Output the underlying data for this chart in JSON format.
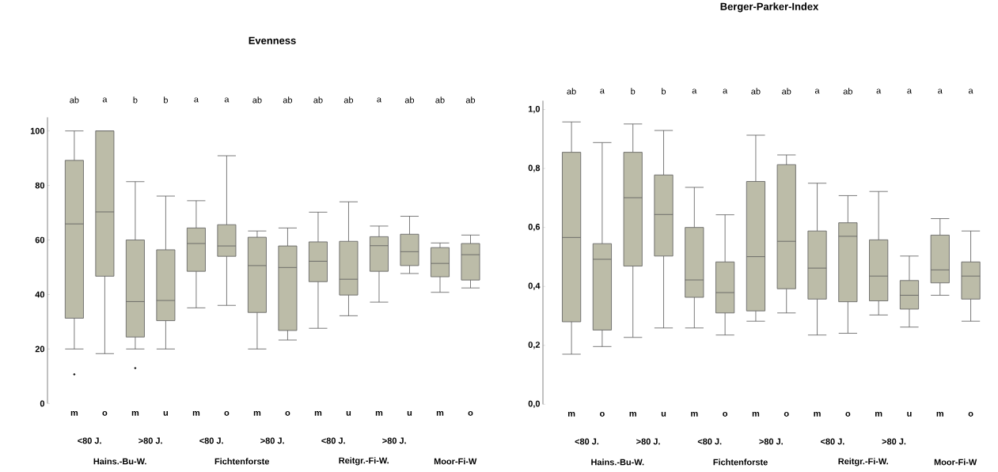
{
  "chart_data": [
    {
      "type": "box",
      "title": "Evenness",
      "color": "#bcbca8",
      "categories": [
        "m",
        "o",
        "m",
        "u",
        "m",
        "o",
        "m",
        "o",
        "m",
        "u",
        "m",
        "u",
        "m",
        "o"
      ],
      "ylim": [
        0,
        105
      ],
      "yticks": [
        0,
        20,
        40,
        60,
        80,
        100
      ],
      "boxes": [
        {
          "low": 20,
          "q1": 31.3,
          "median": 65.9,
          "q3": 89.2,
          "high": 100,
          "outliers": [
            10.7
          ]
        },
        {
          "low": 18.3,
          "q1": 46.7,
          "median": 70.3,
          "q3": 100,
          "high": 100
        },
        {
          "low": 20,
          "q1": 24.4,
          "median": 37.4,
          "q3": 60,
          "high": 81.4,
          "outliers": [
            13
          ]
        },
        {
          "low": 20,
          "q1": 30.4,
          "median": 37.8,
          "q3": 56.4,
          "high": 76.1
        },
        {
          "low": 35.1,
          "q1": 48.5,
          "median": 58.7,
          "q3": 64.4,
          "high": 74.4
        },
        {
          "low": 36,
          "q1": 54,
          "median": 57.8,
          "q3": 65.6,
          "high": 90.9
        },
        {
          "low": 20,
          "q1": 33.4,
          "median": 50.6,
          "q3": 61,
          "high": 63.3
        },
        {
          "low": 23.3,
          "q1": 26.8,
          "median": 49.9,
          "q3": 57.8,
          "high": 64.4
        },
        {
          "low": 27.6,
          "q1": 44.7,
          "median": 52.2,
          "q3": 59.3,
          "high": 70.2
        },
        {
          "low": 32.2,
          "q1": 39.8,
          "median": 45.6,
          "q3": 59.5,
          "high": 74
        },
        {
          "low": 37.2,
          "q1": 48.5,
          "median": 57.9,
          "q3": 61.2,
          "high": 65.1
        },
        {
          "low": 47.7,
          "q1": 50.6,
          "median": 55.7,
          "q3": 62.1,
          "high": 68.7
        },
        {
          "low": 40.8,
          "q1": 46.5,
          "median": 51.4,
          "q3": 57.2,
          "high": 58.9
        },
        {
          "low": 42.4,
          "q1": 45.3,
          "median": 54.6,
          "q3": 58.7,
          "high": 61.8
        }
      ],
      "annotations": [
        "ab",
        "a",
        "b",
        "b",
        "a",
        "a",
        "ab",
        "ab",
        "ab",
        "ab",
        "a",
        "ab",
        "ab",
        "ab",
        "<80 J.",
        ">80 J.",
        "<80 J.",
        ">80 J.",
        "<80 J.",
        ">80 J.",
        "Hains.-Bu-W.",
        "Fichtenforste",
        "Reitgr.-Fi-W.",
        "Moor-Fi-W"
      ]
    },
    {
      "type": "box",
      "title": "Berger-Parker-Index",
      "color": "#bcbca8",
      "categories": [
        "m",
        "o",
        "m",
        "u",
        "m",
        "o",
        "m",
        "o",
        "m",
        "o",
        "m",
        "u",
        "m",
        "o"
      ],
      "ylim": [
        0,
        1.03
      ],
      "yticks": [
        {
          "value": 0,
          "label": "0,0"
        },
        {
          "value": 0.2,
          "label": "0,2"
        },
        {
          "value": 0.4,
          "label": "0,4"
        },
        {
          "value": 0.6,
          "label": "0,6"
        },
        {
          "value": 0.8,
          "label": "0,8"
        },
        {
          "value": 1,
          "label": "1,0"
        }
      ],
      "boxes": [
        {
          "low": 0.17,
          "q1": 0.28,
          "median": 0.566,
          "q3": 0.855,
          "high": 0.958
        },
        {
          "low": 0.196,
          "q1": 0.252,
          "median": 0.492,
          "q3": 0.545,
          "high": 0.888
        },
        {
          "low": 0.227,
          "q1": 0.469,
          "median": 0.701,
          "q3": 0.855,
          "high": 0.951
        },
        {
          "low": 0.259,
          "q1": 0.503,
          "median": 0.644,
          "q3": 0.778,
          "high": 0.929
        },
        {
          "low": 0.259,
          "q1": 0.363,
          "median": 0.422,
          "q3": 0.6,
          "high": 0.736
        },
        {
          "low": 0.235,
          "q1": 0.31,
          "median": 0.379,
          "q3": 0.483,
          "high": 0.643
        },
        {
          "low": 0.282,
          "q1": 0.317,
          "median": 0.501,
          "q3": 0.756,
          "high": 0.913
        },
        {
          "low": 0.31,
          "q1": 0.392,
          "median": 0.553,
          "q3": 0.813,
          "high": 0.846
        },
        {
          "low": 0.235,
          "q1": 0.357,
          "median": 0.462,
          "q3": 0.588,
          "high": 0.75
        },
        {
          "low": 0.241,
          "q1": 0.348,
          "median": 0.57,
          "q3": 0.616,
          "high": 0.708
        },
        {
          "low": 0.303,
          "q1": 0.351,
          "median": 0.435,
          "q3": 0.558,
          "high": 0.722
        },
        {
          "low": 0.262,
          "q1": 0.323,
          "median": 0.37,
          "q3": 0.42,
          "high": 0.503
        },
        {
          "low": 0.37,
          "q1": 0.412,
          "median": 0.456,
          "q3": 0.574,
          "high": 0.63
        },
        {
          "low": 0.282,
          "q1": 0.357,
          "median": 0.435,
          "q3": 0.483,
          "high": 0.588
        }
      ],
      "annotations": [
        "ab",
        "a",
        "b",
        "b",
        "a",
        "a",
        "ab",
        "ab",
        "a",
        "ab",
        "a",
        "a",
        "a",
        "a",
        "<80 J.",
        ">80 J.",
        "<80 J.",
        ">80 J.",
        "<80 J.",
        ">80 J.",
        "Hains.-Bu-W.",
        "Fichtenforste",
        "Reitgr.-Fi-W.",
        "Moor-Fi-W"
      ]
    }
  ]
}
